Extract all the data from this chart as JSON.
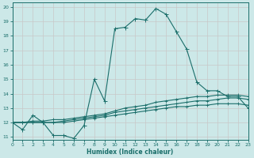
{
  "xlabel": "Humidex (Indice chaleur)",
  "xlim": [
    0,
    23
  ],
  "ylim": [
    10.8,
    20.3
  ],
  "yticks": [
    11,
    12,
    13,
    14,
    15,
    16,
    17,
    18,
    19,
    20
  ],
  "xticks": [
    0,
    1,
    2,
    3,
    4,
    5,
    6,
    7,
    8,
    9,
    10,
    11,
    12,
    13,
    14,
    15,
    16,
    17,
    18,
    19,
    20,
    21,
    22,
    23
  ],
  "bg_color": "#cce8e8",
  "grid_color": "#b0d0d0",
  "line_color": "#1a6e6a",
  "curve1": [
    12.0,
    11.5,
    12.5,
    12.0,
    11.1,
    11.1,
    10.9,
    11.8,
    15.0,
    13.5,
    18.5,
    18.6,
    19.2,
    19.1,
    19.9,
    19.5,
    18.3,
    17.1,
    14.8,
    14.2,
    14.2,
    13.8,
    13.8,
    13.0
  ],
  "curve2": [
    12.0,
    12.0,
    12.0,
    12.0,
    12.0,
    12.0,
    12.1,
    12.2,
    12.3,
    12.4,
    12.5,
    12.6,
    12.7,
    12.8,
    12.9,
    13.0,
    13.1,
    13.1,
    13.2,
    13.2,
    13.3,
    13.3,
    13.3,
    13.2
  ],
  "curve3": [
    12.0,
    12.0,
    12.0,
    12.0,
    12.0,
    12.1,
    12.2,
    12.3,
    12.4,
    12.5,
    12.7,
    12.8,
    12.9,
    13.0,
    13.1,
    13.2,
    13.3,
    13.4,
    13.5,
    13.5,
    13.6,
    13.7,
    13.7,
    13.6
  ],
  "curve4": [
    12.0,
    12.0,
    12.1,
    12.1,
    12.2,
    12.2,
    12.3,
    12.4,
    12.5,
    12.6,
    12.8,
    13.0,
    13.1,
    13.2,
    13.4,
    13.5,
    13.6,
    13.7,
    13.8,
    13.8,
    13.9,
    13.9,
    13.9,
    13.8
  ]
}
